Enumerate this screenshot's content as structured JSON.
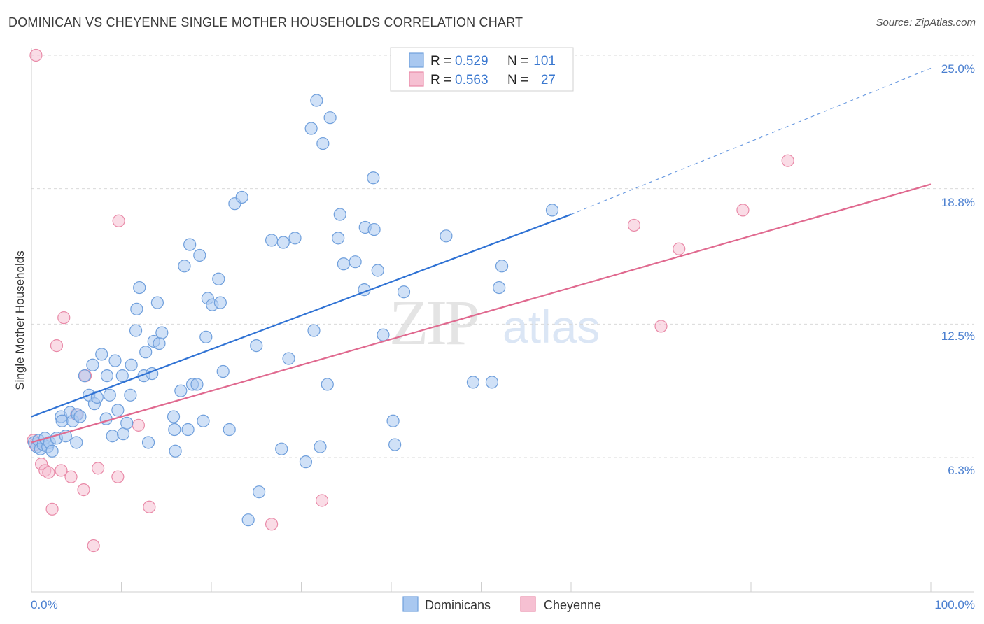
{
  "title": "DOMINICAN VS CHEYENNE SINGLE MOTHER HOUSEHOLDS CORRELATION CHART",
  "source": "Source: ZipAtlas.com",
  "watermark": {
    "zip": "ZIP",
    "atlas": "atlas"
  },
  "colors": {
    "blue_fill": "#a9c8f0",
    "blue_stroke": "#6f9fdc",
    "blue_line": "#2f72d4",
    "pink_fill": "#f6c0d2",
    "pink_stroke": "#e98aa8",
    "pink_line": "#e0698f",
    "grid": "#d9d9d9",
    "tick_text": "#4a7fd0"
  },
  "legend": {
    "rows": [
      {
        "r_label": "R = ",
        "r_value": "0.529",
        "n_label": "N = ",
        "n_value": "101"
      },
      {
        "r_label": "R = ",
        "r_value": "0.563",
        "n_label": "N = ",
        "n_value": "27"
      }
    ]
  },
  "chart_data": {
    "type": "scatter",
    "title": "DOMINICAN VS CHEYENNE SINGLE MOTHER HOUSEHOLDS CORRELATION CHART",
    "xlabel": "",
    "ylabel": "Single Mother Households",
    "xlim": [
      0,
      100
    ],
    "ylim": [
      0,
      26
    ],
    "x_tick_labels": [
      "0.0%",
      "100.0%"
    ],
    "y_ticks": [
      6.3,
      12.5,
      18.8,
      25.0
    ],
    "y_tick_labels": [
      "6.3%",
      "12.5%",
      "18.8%",
      "25.0%"
    ],
    "grid": true,
    "legend_position": "top-center",
    "series": [
      {
        "name": "Dominicans",
        "R": 0.529,
        "N": 101,
        "trend": {
          "x": [
            0,
            60
          ],
          "y": [
            8.2,
            17.6
          ],
          "dashed_to": [
            100,
            24.4
          ]
        },
        "points": [
          [
            0.3,
            7.0
          ],
          [
            0.6,
            6.8
          ],
          [
            0.8,
            7.1
          ],
          [
            1.0,
            6.7
          ],
          [
            1.3,
            6.9
          ],
          [
            1.5,
            7.2
          ],
          [
            1.8,
            6.8
          ],
          [
            2.0,
            7.0
          ],
          [
            2.3,
            6.6
          ],
          [
            2.8,
            7.2
          ],
          [
            3.3,
            8.2
          ],
          [
            3.4,
            8.0
          ],
          [
            3.8,
            7.3
          ],
          [
            4.3,
            8.4
          ],
          [
            4.6,
            8.0
          ],
          [
            5.0,
            7.0
          ],
          [
            5.1,
            8.3
          ],
          [
            5.4,
            8.2
          ],
          [
            5.9,
            10.1
          ],
          [
            6.4,
            9.2
          ],
          [
            6.8,
            10.6
          ],
          [
            7.0,
            8.8
          ],
          [
            7.3,
            9.1
          ],
          [
            7.8,
            11.1
          ],
          [
            8.3,
            8.1
          ],
          [
            8.4,
            10.1
          ],
          [
            8.7,
            9.2
          ],
          [
            9.0,
            7.3
          ],
          [
            9.3,
            10.8
          ],
          [
            9.6,
            8.5
          ],
          [
            10.1,
            10.1
          ],
          [
            10.2,
            7.4
          ],
          [
            10.6,
            7.9
          ],
          [
            11.0,
            9.2
          ],
          [
            11.1,
            10.6
          ],
          [
            11.6,
            12.2
          ],
          [
            11.7,
            13.2
          ],
          [
            12.0,
            14.2
          ],
          [
            12.5,
            10.1
          ],
          [
            12.7,
            11.2
          ],
          [
            13.0,
            7.0
          ],
          [
            13.4,
            10.2
          ],
          [
            13.6,
            11.7
          ],
          [
            14.0,
            13.5
          ],
          [
            14.2,
            11.6
          ],
          [
            14.5,
            12.1
          ],
          [
            15.8,
            8.2
          ],
          [
            15.9,
            7.6
          ],
          [
            16.0,
            6.6
          ],
          [
            16.6,
            9.4
          ],
          [
            17.0,
            15.2
          ],
          [
            17.4,
            7.6
          ],
          [
            17.6,
            16.2
          ],
          [
            17.9,
            9.7
          ],
          [
            18.4,
            9.7
          ],
          [
            18.7,
            15.7
          ],
          [
            19.1,
            8.0
          ],
          [
            19.4,
            11.9
          ],
          [
            19.6,
            13.7
          ],
          [
            20.1,
            13.4
          ],
          [
            20.8,
            14.6
          ],
          [
            21.0,
            13.5
          ],
          [
            21.3,
            10.3
          ],
          [
            22.0,
            7.6
          ],
          [
            22.6,
            18.1
          ],
          [
            23.4,
            18.4
          ],
          [
            24.1,
            3.4
          ],
          [
            25.0,
            11.5
          ],
          [
            25.3,
            4.7
          ],
          [
            26.7,
            16.4
          ],
          [
            27.8,
            6.7
          ],
          [
            28.0,
            16.3
          ],
          [
            28.6,
            10.9
          ],
          [
            29.3,
            16.5
          ],
          [
            30.5,
            6.1
          ],
          [
            31.1,
            21.6
          ],
          [
            31.4,
            12.2
          ],
          [
            31.7,
            22.9
          ],
          [
            32.1,
            6.8
          ],
          [
            32.4,
            20.9
          ],
          [
            32.9,
            9.7
          ],
          [
            33.2,
            22.1
          ],
          [
            34.1,
            16.5
          ],
          [
            34.3,
            17.6
          ],
          [
            34.7,
            15.3
          ],
          [
            36.0,
            15.4
          ],
          [
            37.0,
            14.1
          ],
          [
            37.1,
            17.0
          ],
          [
            38.0,
            19.3
          ],
          [
            38.1,
            16.9
          ],
          [
            38.5,
            15.0
          ],
          [
            39.1,
            12.0
          ],
          [
            40.2,
            8.0
          ],
          [
            40.4,
            6.9
          ],
          [
            41.4,
            14.0
          ],
          [
            46.1,
            16.6
          ],
          [
            49.1,
            9.8
          ],
          [
            51.2,
            9.8
          ],
          [
            52.0,
            14.2
          ],
          [
            52.3,
            15.2
          ],
          [
            57.9,
            17.8
          ]
        ]
      },
      {
        "name": "Cheyenne",
        "R": 0.563,
        "N": 27,
        "trend": {
          "x": [
            0,
            100
          ],
          "y": [
            7.0,
            19.0
          ]
        },
        "points": [
          [
            0.2,
            7.1
          ],
          [
            0.4,
            6.9
          ],
          [
            1.1,
            6.0
          ],
          [
            1.5,
            5.7
          ],
          [
            1.9,
            5.6
          ],
          [
            2.3,
            3.9
          ],
          [
            2.8,
            11.5
          ],
          [
            3.3,
            5.7
          ],
          [
            3.6,
            12.8
          ],
          [
            4.4,
            5.4
          ],
          [
            5.0,
            8.3
          ],
          [
            5.8,
            4.8
          ],
          [
            6.0,
            10.1
          ],
          [
            6.9,
            2.2
          ],
          [
            7.4,
            5.8
          ],
          [
            9.6,
            5.4
          ],
          [
            9.7,
            17.3
          ],
          [
            11.9,
            7.8
          ],
          [
            13.1,
            4.0
          ],
          [
            26.7,
            3.2
          ],
          [
            32.3,
            4.3
          ],
          [
            67.0,
            17.1
          ],
          [
            70.0,
            12.4
          ],
          [
            72.0,
            16.0
          ],
          [
            79.1,
            17.8
          ],
          [
            84.1,
            20.1
          ],
          [
            0.5,
            25.0
          ]
        ]
      }
    ]
  },
  "bottom_legend": {
    "items": [
      {
        "label": "Dominicans"
      },
      {
        "label": "Cheyenne"
      }
    ]
  }
}
